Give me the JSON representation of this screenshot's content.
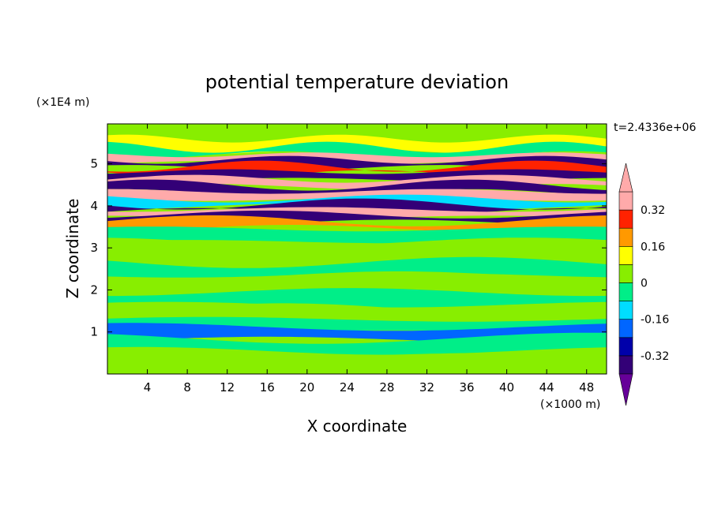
{
  "chart_data": {
    "type": "contour",
    "title": "potential temperature deviation",
    "xlabel": "X coordinate",
    "ylabel": "Z coordinate",
    "x_unit": "(×1000 m)",
    "y_unit": "(×1E4 m)",
    "time_label": "t=2.4336e+06",
    "xlim": [
      0,
      50
    ],
    "ylim": [
      0,
      5.95
    ],
    "x_ticks": [
      4,
      8,
      12,
      16,
      20,
      24,
      28,
      32,
      36,
      40,
      44,
      48
    ],
    "y_ticks": [
      1,
      2,
      3,
      4,
      5
    ],
    "colorbar": {
      "levels": [
        -0.4,
        -0.32,
        -0.24,
        -0.16,
        -0.08,
        0,
        0.08,
        0.16,
        0.24,
        0.32,
        0.4
      ],
      "labels": [
        "0.32",
        "0.16",
        "0",
        "-0.16",
        "-0.32"
      ],
      "label_values": [
        0.32,
        0.16,
        0,
        -0.16,
        -0.32
      ],
      "colors": [
        "#660099",
        "#330077",
        "#0000aa",
        "#0066ff",
        "#00ddff",
        "#00ee88",
        "#88ee00",
        "#ffff00",
        "#ff9900",
        "#ff2200",
        "#ffaaaa"
      ],
      "extend": "both"
    },
    "bands": [
      {
        "y": 5.75,
        "value": 0.04
      },
      {
        "y": 5.45,
        "value": 0.12
      },
      {
        "y": 5.3,
        "value": -0.08
      },
      {
        "y": 5.12,
        "value": 0.36
      },
      {
        "y": 5.0,
        "value": -0.36
      },
      {
        "y": 4.85,
        "value": 0.28
      },
      {
        "y": 4.72,
        "value": -0.36
      },
      {
        "y": 4.55,
        "value": 0.36
      },
      {
        "y": 4.4,
        "value": -0.36
      },
      {
        "y": 4.25,
        "value": 0.36
      },
      {
        "y": 4.08,
        "value": -0.12
      },
      {
        "y": 3.95,
        "value": -0.36
      },
      {
        "y": 3.82,
        "value": 0.36
      },
      {
        "y": 3.7,
        "value": -0.36
      },
      {
        "y": 3.55,
        "value": 0.2
      },
      {
        "y": 3.3,
        "value": -0.04
      },
      {
        "y": 3.0,
        "value": 0.04
      },
      {
        "y": 2.5,
        "value": -0.04
      },
      {
        "y": 2.2,
        "value": 0.04
      },
      {
        "y": 1.8,
        "value": -0.04
      },
      {
        "y": 1.4,
        "value": 0.04
      },
      {
        "y": 1.15,
        "value": -0.04
      },
      {
        "y": 0.97,
        "value": -0.2
      },
      {
        "y": 0.7,
        "value": -0.04
      },
      {
        "y": 0.3,
        "value": 0.04
      }
    ]
  }
}
